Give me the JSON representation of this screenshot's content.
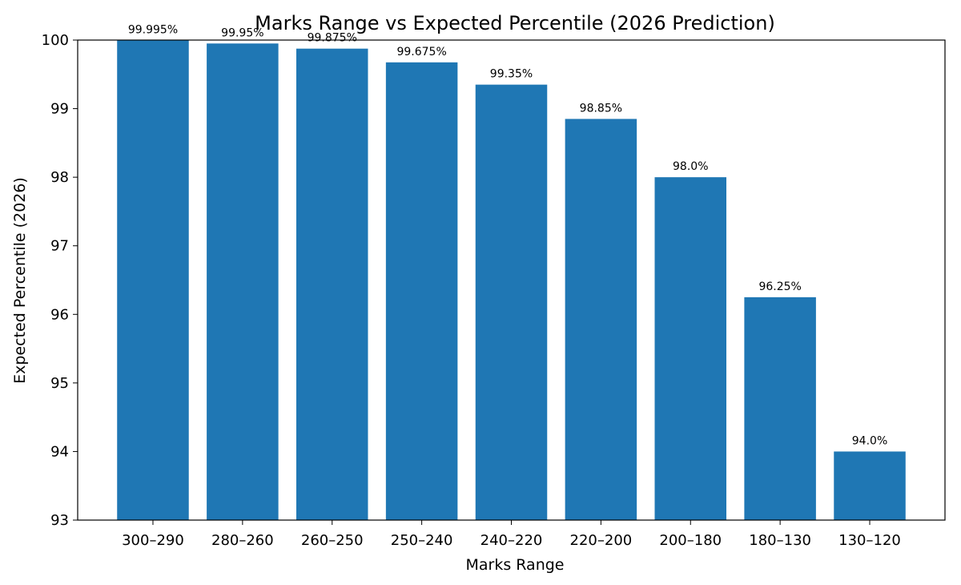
{
  "chart_data": {
    "type": "bar",
    "title": "Marks Range vs Expected Percentile (2026 Prediction)",
    "xlabel": "Marks Range",
    "ylabel": "Expected Percentile (2026)",
    "categories": [
      "300–290",
      "280–260",
      "260–250",
      "250–240",
      "240–220",
      "220–200",
      "200–180",
      "180–130",
      "130–120"
    ],
    "values": [
      99.995,
      99.95,
      99.875,
      99.675,
      99.35,
      98.85,
      98.0,
      96.25,
      94.0
    ],
    "data_labels": [
      "99.995%",
      "99.95%",
      "99.875%",
      "99.675%",
      "99.35%",
      "98.85%",
      "98.0%",
      "96.25%",
      "94.0%"
    ],
    "ylim": [
      93,
      100
    ],
    "yticks": [
      "93",
      "94",
      "95",
      "96",
      "97",
      "98",
      "99",
      "100"
    ],
    "grid": false,
    "bar_color": "#1f77b4"
  }
}
